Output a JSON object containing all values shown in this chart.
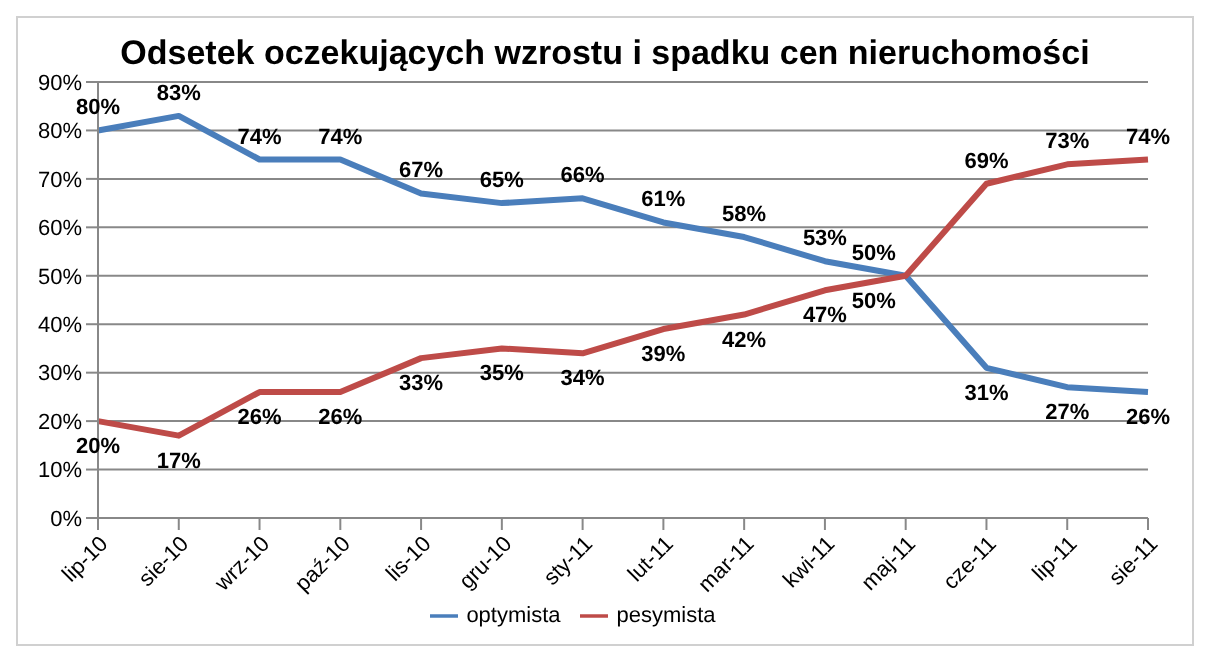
{
  "chart_data": {
    "type": "line",
    "title": "Odsetek oczekujących wzrostu i spadku cen nieruchomości",
    "categories": [
      "lip-10",
      "sie-10",
      "wrz-10",
      "paź-10",
      "lis-10",
      "gru-10",
      "sty-11",
      "lut-11",
      "mar-11",
      "kwi-11",
      "maj-11",
      "cze-11",
      "lip-11",
      "sie-11"
    ],
    "series": [
      {
        "name": "optymista",
        "color": "#4a7ebb",
        "values": [
          80,
          83,
          74,
          74,
          67,
          65,
          66,
          61,
          58,
          53,
          50,
          31,
          27,
          26
        ],
        "value_labels": [
          "80%",
          "83%",
          "74%",
          "74%",
          "67%",
          "65%",
          "66%",
          "61%",
          "58%",
          "53%",
          "50%",
          "31%",
          "27%",
          "26%"
        ]
      },
      {
        "name": "pesymista",
        "color": "#be4b48",
        "values": [
          20,
          17,
          26,
          26,
          33,
          35,
          34,
          39,
          42,
          47,
          50,
          69,
          73,
          74
        ],
        "value_labels": [
          "20%",
          "17%",
          "26%",
          "26%",
          "33%",
          "35%",
          "34%",
          "39%",
          "42%",
          "47%",
          "50%",
          "69%",
          "73%",
          "74%"
        ]
      }
    ],
    "ylim": [
      0,
      90
    ],
    "yticks": [
      {
        "value": 0,
        "label": "0%"
      },
      {
        "value": 10,
        "label": "10%"
      },
      {
        "value": 20,
        "label": "20%"
      },
      {
        "value": 30,
        "label": "30%"
      },
      {
        "value": 40,
        "label": "40%"
      },
      {
        "value": 50,
        "label": "50%"
      },
      {
        "value": 60,
        "label": "60%"
      },
      {
        "value": 70,
        "label": "70%"
      },
      {
        "value": 80,
        "label": "80%"
      },
      {
        "value": 90,
        "label": "90%"
      }
    ],
    "grid": "y",
    "legend": "bottom",
    "marker": "none",
    "line_style": "solid"
  }
}
